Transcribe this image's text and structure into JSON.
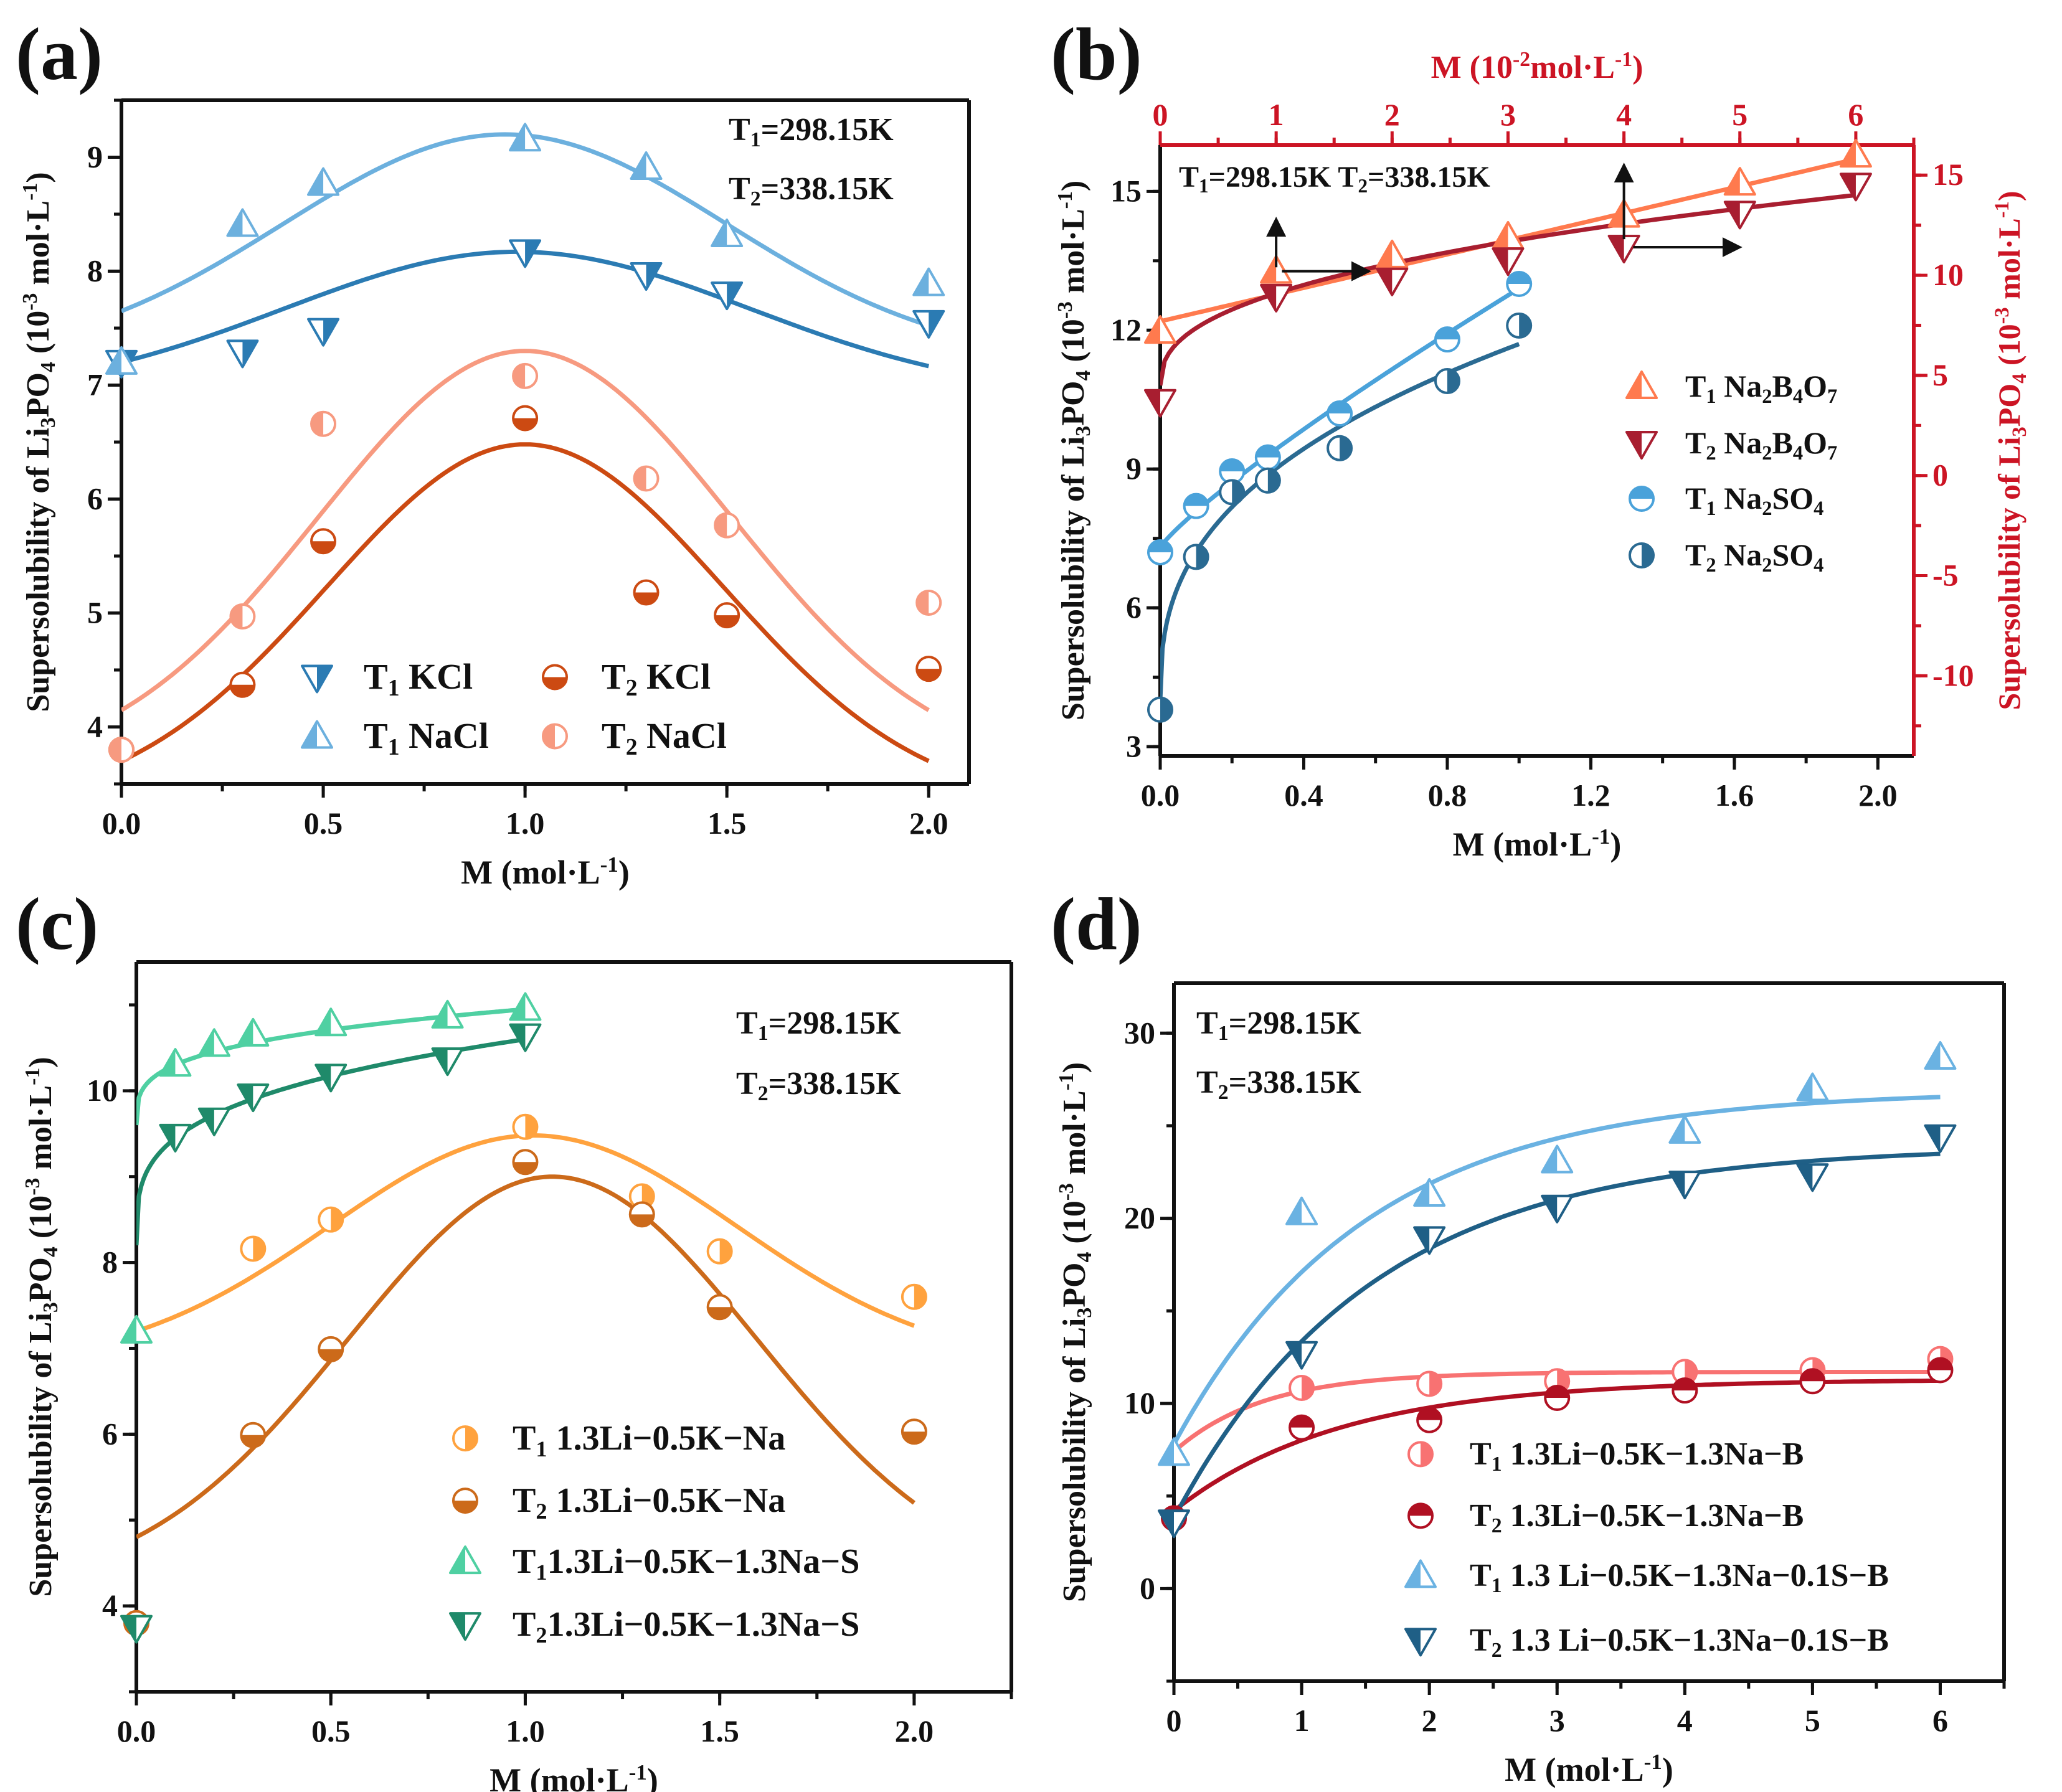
{
  "chart_data": [
    {
      "panel": "(a)",
      "type": "scatter",
      "xlabel": "M (mol·L^{-1})",
      "ylabel": "Supersolubility of Li_{3}PO_{4} (10^{-3} mol·L^{-1})",
      "xlim": [
        0,
        2.1
      ],
      "ylim": [
        3.5,
        9.5
      ],
      "xticks": {
        "major": [
          0,
          0.5,
          1.0,
          1.5,
          2.0
        ],
        "labels": [
          "0.0",
          "0.5",
          "1.0",
          "1.5",
          "2.0"
        ],
        "minor_step": 0.25
      },
      "yticks": {
        "major": [
          4,
          5,
          6,
          7,
          8,
          9
        ],
        "labels": [
          "4",
          "5",
          "6",
          "7",
          "8",
          "9"
        ],
        "minor_step": 0.5
      },
      "annotations": [
        "T_{1}=298.15K",
        "T_{2}=338.15K"
      ],
      "legend_placement": "bottom-center",
      "series": [
        {
          "name": "T_{1} KCl",
          "color": "#2b7bb3",
          "marker": "tri-down",
          "fill": "right",
          "x": [
            0,
            0.3,
            0.5,
            1.0,
            1.3,
            1.5,
            2.0
          ],
          "y": [
            7.2,
            7.29,
            7.48,
            8.17,
            7.97,
            7.8,
            7.55
          ],
          "fit": {
            "model": "gauss",
            "y0": 6.9,
            "A": 1.27,
            "xc": 0.98,
            "w": 1.155,
            "range": [
              0,
              2
            ]
          }
        },
        {
          "name": "T_{2} KCl",
          "color": "#cc4a12",
          "marker": "circle",
          "fill": "bottom",
          "x": [
            0,
            0.3,
            0.5,
            1.0,
            1.3,
            1.5,
            2.0
          ],
          "y": [
            3.8,
            4.37,
            5.63,
            6.71,
            5.18,
            4.98,
            4.51
          ],
          "fit": {
            "model": "gauss",
            "y0": 3.3,
            "A": 3.18,
            "xc": 1.0,
            "w": 0.983,
            "range": [
              0,
              2
            ]
          }
        },
        {
          "name": "T_{1} NaCl",
          "color": "#6cb0de",
          "marker": "tri-up",
          "fill": "left",
          "x": [
            0,
            0.3,
            0.5,
            1.0,
            1.3,
            1.5,
            2.0
          ],
          "y": [
            7.2,
            8.41,
            8.77,
            9.16,
            8.91,
            8.32,
            7.89
          ],
          "fit": {
            "model": "gauss",
            "y0": 7.2,
            "A": 2.0,
            "xc": 0.95,
            "w": 1.1,
            "range": [
              0,
              2
            ]
          }
        },
        {
          "name": "T_{2} NaCl",
          "color": "#f79a80",
          "marker": "circle",
          "fill": "left",
          "x": [
            0,
            0.3,
            0.5,
            1.0,
            1.3,
            1.5,
            2.0
          ],
          "y": [
            3.8,
            4.97,
            6.66,
            7.08,
            6.18,
            5.77,
            5.09
          ],
          "fit": {
            "model": "gauss",
            "y0": 3.6,
            "A": 3.7,
            "xc": 1.0,
            "w": 1.023,
            "range": [
              0,
              2
            ]
          }
        }
      ]
    },
    {
      "panel": "(b)",
      "type": "scatter",
      "xlabel": "M (mol·L^{-1})",
      "ylabel": "Supersolubility of Li_{3}PO_{4} (10^{-3} mol·L^{-1})",
      "x2label": "M (10^{-2}mol·L^{-1})",
      "y2label": "Supersolubility of Li_{3}PO_{4} (10^{-3} mol·L^{-1})",
      "secondary_axis_color": "#cc1424",
      "xlim": [
        0,
        2.1
      ],
      "ylim": [
        2.8,
        16
      ],
      "x2lim": [
        0,
        6.5
      ],
      "y2lim": [
        -14,
        16.5
      ],
      "xticks": {
        "major": [
          0,
          0.4,
          0.8,
          1.2,
          1.6,
          2.0
        ],
        "labels": [
          "0.0",
          "0.4",
          "0.8",
          "1.2",
          "1.6",
          "2.0"
        ],
        "minor_step": 0.2
      },
      "yticks": {
        "major": [
          3,
          6,
          9,
          12,
          15
        ],
        "labels": [
          "3",
          "6",
          "9",
          "12",
          "15"
        ],
        "minor_step": 1.5
      },
      "x2ticks": {
        "major": [
          0,
          1,
          2,
          3,
          4,
          5,
          6
        ],
        "labels": [
          "0",
          "1",
          "2",
          "3",
          "4",
          "5",
          "6"
        ],
        "minor_step": 0.5
      },
      "y2ticks": {
        "major": [
          -10,
          -5,
          0,
          5,
          10,
          15
        ],
        "labels": [
          "-10",
          "-5",
          "0",
          "5",
          "10",
          "15"
        ],
        "minor_step": 2.5
      },
      "annotations": [
        "T_{1}=298.15K T_{2}=338.15K"
      ],
      "arrows": [
        {
          "axes": "secondary",
          "from": [
            1.0,
            10.4
          ],
          "to": [
            1.0,
            12.8
          ]
        },
        {
          "axes": "secondary",
          "from": [
            1.05,
            10.2
          ],
          "to": [
            1.8,
            10.2
          ]
        },
        {
          "axes": "secondary",
          "from": [
            4.0,
            11.8
          ],
          "to": [
            4.0,
            15.5
          ]
        },
        {
          "axes": "secondary",
          "from": [
            4.08,
            11.4
          ],
          "to": [
            5.0,
            11.4
          ]
        }
      ],
      "legend_placement": "center-right",
      "series": [
        {
          "name": "T_{1} Na_{2}B_{4}O_{7}",
          "axes": "secondary",
          "color": "#ff7a4e",
          "marker": "tri-up",
          "fill": "left",
          "x": [
            0,
            1,
            2,
            3,
            4,
            5,
            6
          ],
          "y": [
            7.2,
            10.2,
            10.97,
            11.9,
            13.0,
            14.6,
            16.0
          ],
          "fit": {
            "model": "linear",
            "a": 7.7,
            "b": 1.35,
            "range": [
              0,
              6
            ]
          }
        },
        {
          "name": "T_{2} Na_{2}B_{4}O_{7}",
          "axes": "secondary",
          "color": "#a81e30",
          "marker": "tri-down",
          "fill": "left",
          "x": [
            0,
            1,
            2,
            3,
            4,
            5,
            6
          ],
          "y": [
            3.7,
            8.95,
            9.76,
            10.77,
            11.4,
            13.1,
            14.5
          ],
          "fit": {
            "model": "power",
            "a": 4.5,
            "b": 4.6,
            "p": 0.405,
            "range": [
              0,
              6
            ]
          }
        },
        {
          "name": "T_{1} Na_{2}SO_{4}",
          "axes": "primary",
          "color": "#4aa2da",
          "marker": "circle",
          "fill": "top",
          "x": [
            0,
            0.1,
            0.2,
            0.3,
            0.5,
            0.8,
            1.0
          ],
          "y": [
            7.2,
            8.2,
            8.95,
            9.25,
            10.2,
            11.8,
            13.0
          ],
          "fit": {
            "model": "power",
            "a": 7.3,
            "b": 5.6,
            "p": 0.855,
            "range": [
              0,
              1
            ]
          }
        },
        {
          "name": "T_{2} Na_{2}SO_{4}",
          "axes": "primary",
          "color": "#2a6a92",
          "marker": "circle",
          "fill": "right",
          "x": [
            0,
            0.1,
            0.2,
            0.3,
            0.5,
            0.8,
            1.0
          ],
          "y": [
            3.8,
            7.1,
            8.5,
            8.75,
            9.45,
            10.9,
            12.1
          ],
          "fit": {
            "model": "power",
            "a": 4.0,
            "b": 7.7,
            "p": 0.38,
            "range": [
              0,
              1
            ]
          }
        }
      ]
    },
    {
      "panel": "(c)",
      "type": "scatter",
      "xlabel": "M (mol·L^{-1})",
      "ylabel": "Supersolubility of Li_{3}PO_{4} (10^{-3} mol·L^{-1})",
      "xlim": [
        0,
        2.25
      ],
      "ylim": [
        3,
        11.5
      ],
      "xticks": {
        "major": [
          0,
          0.5,
          1.0,
          1.5,
          2.0
        ],
        "labels": [
          "0.0",
          "0.5",
          "1.0",
          "1.5",
          "2.0"
        ],
        "minor_step": 0.25
      },
      "yticks": {
        "major": [
          4,
          6,
          8,
          10
        ],
        "labels": [
          "4",
          "6",
          "8",
          "10"
        ],
        "minor_step": 1
      },
      "annotations": [
        "T_{1}=298.15K",
        "T_{2}=338.15K"
      ],
      "legend_placement": "bottom-right",
      "series": [
        {
          "name": "T_{1} 1.3Li−0.5K−Na",
          "color": "#ffa23e",
          "marker": "circle",
          "fill": "right",
          "x": [
            0.3,
            0.5,
            1.0,
            1.3,
            1.5,
            2.0
          ],
          "y": [
            8.16,
            8.5,
            9.58,
            8.77,
            8.13,
            7.6
          ],
          "fit": {
            "model": "gauss",
            "y0": 6.8,
            "A": 2.68,
            "xc": 1.02,
            "w": 1.046,
            "range": [
              0,
              2
            ]
          }
        },
        {
          "name": "T_{2} 1.3Li−0.5K−Na",
          "color": "#cc6a1a",
          "marker": "circle",
          "fill": "bottom",
          "x": [
            0,
            0.3,
            0.5,
            1.0,
            1.3,
            1.5,
            2.0
          ],
          "y": [
            3.8,
            5.99,
            6.99,
            9.17,
            8.56,
            7.48,
            6.03
          ],
          "fit": {
            "model": "gauss",
            "y0": 4.2,
            "A": 4.8,
            "xc": 1.07,
            "w": 1.05,
            "range": [
              0,
              2
            ]
          }
        },
        {
          "name": "T_{1}1.3Li−0.5K−1.3Na−S",
          "color": "#4fd0a2",
          "marker": "tri-up",
          "fill": "left",
          "x": [
            0,
            0.1,
            0.2,
            0.3,
            0.5,
            0.8,
            1.0
          ],
          "y": [
            7.2,
            10.31,
            10.54,
            10.66,
            10.78,
            10.87,
            10.96
          ],
          "fit": {
            "model": "power",
            "a": 9.6,
            "b": 1.35,
            "p": 0.284,
            "range": [
              0,
              1
            ]
          }
        },
        {
          "name": "T_{2}1.3Li−0.5K−1.3Na−S",
          "color": "#1f8a6a",
          "marker": "tri-down",
          "fill": "left",
          "x": [
            0,
            0.1,
            0.2,
            0.3,
            0.5,
            0.8,
            1.0
          ],
          "y": [
            3.75,
            9.47,
            9.66,
            9.94,
            10.17,
            10.36,
            10.64
          ],
          "fit": {
            "model": "power",
            "a": 8.2,
            "b": 2.4,
            "p": 0.284,
            "range": [
              0,
              1
            ]
          }
        }
      ]
    },
    {
      "panel": "(d)",
      "type": "scatter",
      "xlabel": "M (mol·L^{-1})",
      "ylabel": "Supersolubility of Li_{3}PO_{4} (10^{-3} mol·L^{-1})",
      "xlim": [
        0,
        6.5
      ],
      "ylim": [
        -5,
        32.7
      ],
      "xticks": {
        "major": [
          0,
          1,
          2,
          3,
          4,
          5,
          6
        ],
        "labels": [
          "0",
          "1",
          "2",
          "3",
          "4",
          "5",
          "6"
        ],
        "minor_step": 0.5
      },
      "yticks": {
        "major": [
          0,
          10,
          20,
          30
        ],
        "labels": [
          "0",
          "10",
          "20",
          "30"
        ],
        "minor_step": 5
      },
      "annotations": [
        "T_{1}=298.15K",
        "T_{2}=338.15K"
      ],
      "legend_placement": "bottom-right",
      "series": [
        {
          "name": "T_{1} 1.3Li−0.5K−1.3Na−B",
          "color": "#f87272",
          "marker": "circle",
          "fill": "right",
          "x": [
            1,
            2,
            3,
            4,
            5,
            6
          ],
          "y": [
            10.84,
            11.06,
            11.2,
            11.7,
            11.8,
            12.4
          ],
          "fit": {
            "model": "exp",
            "a": 11.7,
            "b": 4.3,
            "t": 0.7,
            "range": [
              0,
              6
            ]
          }
        },
        {
          "name": "T_{2} 1.3Li−0.5K−1.3Na−B",
          "color": "#b01022",
          "marker": "circle",
          "fill": "top",
          "x": [
            0,
            1,
            2,
            3,
            4,
            5,
            6
          ],
          "y": [
            3.8,
            8.7,
            9.1,
            10.3,
            10.7,
            11.2,
            11.8
          ],
          "fit": {
            "model": "exp",
            "a": 11.3,
            "b": 7.1,
            "t": 1.3,
            "range": [
              0,
              6
            ]
          }
        },
        {
          "name": "T_{1} 1.3 Li−0.5K−1.3Na−0.1S−B",
          "color": "#6ab2e2",
          "marker": "tri-up",
          "fill": "left",
          "x": [
            0,
            1,
            2,
            3,
            4,
            5,
            6
          ],
          "y": [
            7.3,
            20.3,
            21.3,
            23.1,
            24.7,
            27.0,
            28.7
          ],
          "fit": {
            "model": "exp",
            "a": 26.9,
            "b": 19.1,
            "t": 1.5,
            "range": [
              0,
              6
            ]
          }
        },
        {
          "name": "T_{2} 1.3 Li−0.5K−1.3Na−0.1S−B",
          "color": "#1f5f86",
          "marker": "tri-down",
          "fill": "left",
          "x": [
            0,
            1,
            2,
            3,
            4,
            5,
            6
          ],
          "y": [
            3.6,
            12.7,
            18.9,
            20.6,
            21.9,
            22.3,
            24.4
          ],
          "fit": {
            "model": "exp",
            "a": 23.9,
            "b": 20.1,
            "t": 1.55,
            "range": [
              0,
              6
            ]
          }
        }
      ]
    }
  ]
}
